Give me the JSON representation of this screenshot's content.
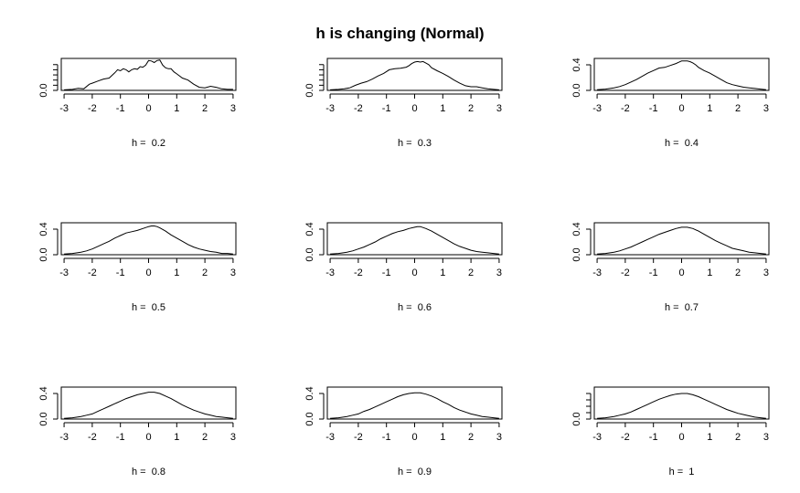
{
  "title": "h is changing (Normal)",
  "chart_data": {
    "type": "line",
    "title": "h is changing (Normal)",
    "xlim": [
      -3.1,
      3.1
    ],
    "xticks": [
      -3,
      -2,
      -1,
      0,
      1,
      2,
      3
    ],
    "panels": [
      {
        "label": "h =  0.2",
        "ylim": [
          0,
          0.62
        ],
        "yticks": [
          0.0,
          0.1,
          0.2,
          0.3,
          0.4,
          0.5
        ],
        "ytick_labels": [
          "0.0",
          "",
          "",
          "",
          "",
          ""
        ],
        "x": [
          -3.0,
          -2.7,
          -2.5,
          -2.3,
          -2.1,
          -2.0,
          -1.8,
          -1.6,
          -1.4,
          -1.2,
          -1.1,
          -1.0,
          -0.9,
          -0.8,
          -0.7,
          -0.6,
          -0.5,
          -0.4,
          -0.3,
          -0.2,
          -0.1,
          0.0,
          0.1,
          0.2,
          0.3,
          0.4,
          0.5,
          0.6,
          0.7,
          0.8,
          0.9,
          1.0,
          1.2,
          1.4,
          1.6,
          1.8,
          2.0,
          2.2,
          2.4,
          2.6,
          2.8,
          3.0
        ],
        "y": [
          0.01,
          0.02,
          0.04,
          0.03,
          0.12,
          0.14,
          0.18,
          0.22,
          0.24,
          0.34,
          0.4,
          0.38,
          0.42,
          0.4,
          0.36,
          0.4,
          0.42,
          0.41,
          0.46,
          0.45,
          0.49,
          0.58,
          0.57,
          0.54,
          0.58,
          0.59,
          0.49,
          0.44,
          0.42,
          0.42,
          0.36,
          0.32,
          0.24,
          0.2,
          0.12,
          0.06,
          0.05,
          0.08,
          0.06,
          0.03,
          0.02,
          0.02
        ]
      },
      {
        "label": "h =  0.3",
        "ylim": [
          0,
          0.62
        ],
        "yticks": [
          0.0,
          0.1,
          0.2,
          0.3,
          0.4,
          0.5
        ],
        "ytick_labels": [
          "0.0",
          "",
          "",
          "",
          "",
          ""
        ],
        "x": [
          -3.0,
          -2.7,
          -2.5,
          -2.3,
          -2.1,
          -1.9,
          -1.7,
          -1.5,
          -1.3,
          -1.1,
          -0.9,
          -0.7,
          -0.5,
          -0.3,
          -0.2,
          -0.1,
          0.0,
          0.1,
          0.2,
          0.3,
          0.4,
          0.5,
          0.6,
          0.8,
          1.0,
          1.2,
          1.4,
          1.6,
          1.8,
          2.0,
          2.2,
          2.4,
          2.6,
          2.8,
          3.0
        ],
        "y": [
          0.01,
          0.02,
          0.03,
          0.05,
          0.1,
          0.14,
          0.17,
          0.22,
          0.28,
          0.33,
          0.4,
          0.42,
          0.43,
          0.45,
          0.48,
          0.52,
          0.55,
          0.56,
          0.55,
          0.56,
          0.53,
          0.5,
          0.44,
          0.38,
          0.33,
          0.27,
          0.2,
          0.14,
          0.09,
          0.07,
          0.07,
          0.05,
          0.03,
          0.02,
          0.01
        ]
      },
      {
        "label": "h =  0.4",
        "ylim": [
          0,
          0.5
        ],
        "yticks": [
          0.0,
          0.4
        ],
        "ytick_labels": [
          "0.0",
          "0.4"
        ],
        "x": [
          -3.0,
          -2.7,
          -2.4,
          -2.2,
          -2.0,
          -1.8,
          -1.6,
          -1.4,
          -1.2,
          -1.0,
          -0.8,
          -0.6,
          -0.4,
          -0.2,
          -0.1,
          0.0,
          0.1,
          0.2,
          0.3,
          0.4,
          0.5,
          0.6,
          0.8,
          1.0,
          1.2,
          1.4,
          1.6,
          1.8,
          2.0,
          2.2,
          2.4,
          2.6,
          2.8,
          3.0
        ],
        "y": [
          0.01,
          0.02,
          0.04,
          0.06,
          0.09,
          0.13,
          0.17,
          0.22,
          0.27,
          0.31,
          0.35,
          0.36,
          0.39,
          0.42,
          0.44,
          0.46,
          0.46,
          0.46,
          0.45,
          0.43,
          0.4,
          0.36,
          0.31,
          0.27,
          0.22,
          0.17,
          0.12,
          0.09,
          0.07,
          0.05,
          0.04,
          0.03,
          0.02,
          0.01
        ]
      },
      {
        "label": "h =  0.5",
        "ylim": [
          0,
          0.5
        ],
        "yticks": [
          0.0,
          0.4
        ],
        "ytick_labels": [
          "0.0",
          "0.4"
        ],
        "x": [
          -3.0,
          -2.7,
          -2.4,
          -2.2,
          -2.0,
          -1.8,
          -1.6,
          -1.4,
          -1.2,
          -1.0,
          -0.8,
          -0.6,
          -0.4,
          -0.2,
          0.0,
          0.1,
          0.2,
          0.3,
          0.4,
          0.6,
          0.8,
          1.0,
          1.2,
          1.4,
          1.6,
          1.8,
          2.0,
          2.2,
          2.4,
          2.6,
          2.8,
          3.0
        ],
        "y": [
          0.01,
          0.02,
          0.04,
          0.06,
          0.09,
          0.13,
          0.17,
          0.21,
          0.26,
          0.3,
          0.34,
          0.36,
          0.38,
          0.41,
          0.44,
          0.45,
          0.45,
          0.44,
          0.42,
          0.37,
          0.31,
          0.26,
          0.21,
          0.16,
          0.12,
          0.09,
          0.07,
          0.05,
          0.04,
          0.02,
          0.02,
          0.01
        ]
      },
      {
        "label": "h =  0.6",
        "ylim": [
          0,
          0.5
        ],
        "yticks": [
          0.0,
          0.4
        ],
        "ytick_labels": [
          "0.0",
          "0.4"
        ],
        "x": [
          -3.0,
          -2.7,
          -2.4,
          -2.2,
          -2.0,
          -1.8,
          -1.6,
          -1.4,
          -1.2,
          -1.0,
          -0.8,
          -0.6,
          -0.4,
          -0.2,
          0.0,
          0.1,
          0.2,
          0.4,
          0.6,
          0.8,
          1.0,
          1.2,
          1.4,
          1.6,
          1.8,
          2.0,
          2.2,
          2.4,
          2.6,
          2.8,
          3.0
        ],
        "y": [
          0.01,
          0.02,
          0.04,
          0.06,
          0.09,
          0.12,
          0.16,
          0.2,
          0.25,
          0.29,
          0.33,
          0.36,
          0.38,
          0.41,
          0.43,
          0.44,
          0.44,
          0.41,
          0.37,
          0.32,
          0.27,
          0.22,
          0.17,
          0.13,
          0.1,
          0.07,
          0.05,
          0.04,
          0.03,
          0.02,
          0.01
        ]
      },
      {
        "label": "h =  0.7",
        "ylim": [
          0,
          0.5
        ],
        "yticks": [
          0.0,
          0.4
        ],
        "ytick_labels": [
          "0.0",
          "0.4"
        ],
        "x": [
          -3.0,
          -2.7,
          -2.4,
          -2.2,
          -2.0,
          -1.8,
          -1.6,
          -1.4,
          -1.2,
          -1.0,
          -0.8,
          -0.6,
          -0.4,
          -0.2,
          0.0,
          0.2,
          0.4,
          0.6,
          0.8,
          1.0,
          1.2,
          1.4,
          1.6,
          1.8,
          2.0,
          2.2,
          2.4,
          2.6,
          2.8,
          3.0
        ],
        "y": [
          0.01,
          0.02,
          0.04,
          0.06,
          0.09,
          0.12,
          0.16,
          0.2,
          0.24,
          0.28,
          0.32,
          0.35,
          0.38,
          0.41,
          0.43,
          0.43,
          0.41,
          0.37,
          0.32,
          0.27,
          0.22,
          0.18,
          0.14,
          0.1,
          0.08,
          0.06,
          0.04,
          0.03,
          0.02,
          0.01
        ]
      },
      {
        "label": "h =  0.8",
        "ylim": [
          0,
          0.5
        ],
        "yticks": [
          0.0,
          0.4
        ],
        "ytick_labels": [
          "0.0",
          "0.4"
        ],
        "x": [
          -3.0,
          -2.7,
          -2.4,
          -2.2,
          -2.0,
          -1.8,
          -1.6,
          -1.4,
          -1.2,
          -1.0,
          -0.8,
          -0.6,
          -0.4,
          -0.2,
          0.0,
          0.2,
          0.4,
          0.6,
          0.8,
          1.0,
          1.2,
          1.4,
          1.6,
          1.8,
          2.0,
          2.2,
          2.4,
          2.6,
          2.8,
          3.0
        ],
        "y": [
          0.01,
          0.02,
          0.04,
          0.06,
          0.08,
          0.12,
          0.16,
          0.2,
          0.24,
          0.28,
          0.32,
          0.35,
          0.38,
          0.4,
          0.42,
          0.42,
          0.4,
          0.36,
          0.32,
          0.27,
          0.22,
          0.18,
          0.14,
          0.11,
          0.08,
          0.06,
          0.04,
          0.03,
          0.02,
          0.01
        ]
      },
      {
        "label": "h =  0.9",
        "ylim": [
          0,
          0.5
        ],
        "yticks": [
          0.0,
          0.4
        ],
        "ytick_labels": [
          "0.0",
          "0.4"
        ],
        "x": [
          -3.0,
          -2.7,
          -2.4,
          -2.2,
          -2.0,
          -1.8,
          -1.6,
          -1.4,
          -1.2,
          -1.0,
          -0.8,
          -0.6,
          -0.4,
          -0.2,
          0.0,
          0.2,
          0.4,
          0.6,
          0.8,
          1.0,
          1.2,
          1.4,
          1.6,
          1.8,
          2.0,
          2.2,
          2.4,
          2.6,
          2.8,
          3.0
        ],
        "y": [
          0.01,
          0.02,
          0.04,
          0.06,
          0.08,
          0.12,
          0.15,
          0.19,
          0.23,
          0.27,
          0.31,
          0.35,
          0.38,
          0.4,
          0.41,
          0.41,
          0.39,
          0.36,
          0.32,
          0.27,
          0.23,
          0.18,
          0.14,
          0.11,
          0.08,
          0.06,
          0.04,
          0.03,
          0.02,
          0.01
        ]
      },
      {
        "label": "h =  1",
        "ylim": [
          0,
          0.5
        ],
        "yticks": [
          0.0,
          0.1,
          0.2,
          0.3,
          0.4
        ],
        "ytick_labels": [
          "0.0",
          "",
          "",
          "",
          ""
        ],
        "x": [
          -3.0,
          -2.7,
          -2.4,
          -2.2,
          -2.0,
          -1.8,
          -1.6,
          -1.4,
          -1.2,
          -1.0,
          -0.8,
          -0.6,
          -0.4,
          -0.2,
          0.0,
          0.2,
          0.4,
          0.6,
          0.8,
          1.0,
          1.2,
          1.4,
          1.6,
          1.8,
          2.0,
          2.2,
          2.4,
          2.6,
          2.8,
          3.0
        ],
        "y": [
          0.01,
          0.02,
          0.04,
          0.06,
          0.08,
          0.11,
          0.15,
          0.19,
          0.23,
          0.27,
          0.31,
          0.34,
          0.37,
          0.39,
          0.4,
          0.4,
          0.38,
          0.35,
          0.31,
          0.27,
          0.23,
          0.19,
          0.15,
          0.12,
          0.09,
          0.07,
          0.05,
          0.03,
          0.02,
          0.01
        ]
      }
    ]
  }
}
